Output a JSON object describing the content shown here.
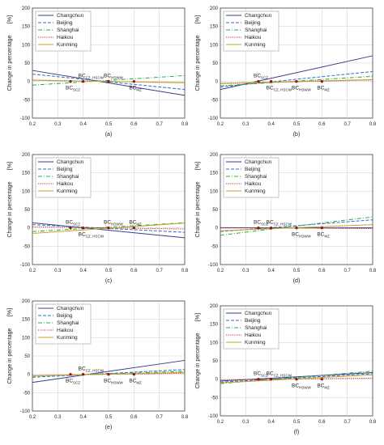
{
  "chart_data": [
    {
      "type": "line",
      "caption": "(a)",
      "ylabel": "Change in percentage",
      "yunit": "[%]",
      "xlim": [
        0.2,
        0.8
      ],
      "ylim": [
        -100,
        200
      ],
      "xticks": [
        0.2,
        0.3,
        0.4,
        0.5,
        0.6,
        0.7,
        0.8
      ],
      "yticks": [
        -100,
        -50,
        0,
        50,
        100,
        150,
        200
      ],
      "grid": true,
      "legend": "top-left",
      "series": [
        {
          "name": "Changchun",
          "x": [
            0.2,
            0.8
          ],
          "y": [
            30,
            -38
          ]
        },
        {
          "name": "Beijing",
          "x": [
            0.2,
            0.8
          ],
          "y": [
            20,
            -22
          ]
        },
        {
          "name": "Shanghai",
          "x": [
            0.2,
            0.8
          ],
          "y": [
            -10,
            16
          ]
        },
        {
          "name": "Haikou",
          "x": [
            0.2,
            0.8
          ],
          "y": [
            4,
            -4
          ]
        },
        {
          "name": "Kunming",
          "x": [
            0.2,
            0.8
          ],
          "y": [
            3,
            -3
          ]
        }
      ],
      "markers": [
        {
          "text": "BC",
          "sub": "SCZ",
          "x": 0.35,
          "y": 0,
          "label_pos": "below"
        },
        {
          "text": "BC",
          "sub": "CZ, HSCW",
          "x": 0.4,
          "y": 0,
          "label_pos": "above"
        },
        {
          "text": "BC",
          "sub": "HSWW",
          "x": 0.5,
          "y": 0,
          "label_pos": "above"
        },
        {
          "text": "BC",
          "sub": "MZ",
          "x": 0.6,
          "y": 0,
          "label_pos": "below"
        }
      ]
    },
    {
      "type": "line",
      "caption": "(b)",
      "ylabel": "Change in percentage",
      "yunit": "[%]",
      "xlim": [
        0.2,
        0.8
      ],
      "ylim": [
        -100,
        200
      ],
      "xticks": [
        0.2,
        0.3,
        0.4,
        0.5,
        0.6,
        0.7,
        0.8
      ],
      "yticks": [
        -100,
        -50,
        0,
        50,
        100,
        150,
        200
      ],
      "grid": true,
      "legend": "top-left",
      "series": [
        {
          "name": "Changchun",
          "x": [
            0.2,
            0.8
          ],
          "y": [
            -22,
            70
          ]
        },
        {
          "name": "Beijing",
          "x": [
            0.2,
            0.8
          ],
          "y": [
            -15,
            27
          ]
        },
        {
          "name": "Shanghai",
          "x": [
            0.2,
            0.8
          ],
          "y": [
            -12,
            14
          ]
        },
        {
          "name": "Haikou",
          "x": [
            0.2,
            0.8
          ],
          "y": [
            -6,
            4
          ]
        },
        {
          "name": "Kunming",
          "x": [
            0.2,
            0.8
          ],
          "y": [
            -5,
            5
          ]
        }
      ],
      "markers": [
        {
          "text": "BC",
          "sub": "SCZ",
          "x": 0.35,
          "y": 0,
          "label_pos": "above"
        },
        {
          "text": "BC",
          "sub": "CZ, HSCW",
          "x": 0.4,
          "y": 0,
          "label_pos": "below"
        },
        {
          "text": "BC",
          "sub": "HSWW",
          "x": 0.5,
          "y": 0,
          "label_pos": "below"
        },
        {
          "text": "BC",
          "sub": "MZ",
          "x": 0.6,
          "y": 0,
          "label_pos": "below"
        }
      ]
    },
    {
      "type": "line",
      "caption": "(c)",
      "ylabel": "Change in percentage",
      "yunit": "[%]",
      "xlim": [
        0.2,
        0.8
      ],
      "ylim": [
        -100,
        200
      ],
      "xticks": [
        0.2,
        0.3,
        0.4,
        0.5,
        0.6,
        0.7,
        0.8
      ],
      "yticks": [
        -100,
        -50,
        0,
        50,
        100,
        150,
        200
      ],
      "grid": true,
      "legend": "top-left",
      "series": [
        {
          "name": "Changchun",
          "x": [
            0.2,
            0.8
          ],
          "y": [
            14,
            -27
          ]
        },
        {
          "name": "Beijing",
          "x": [
            0.2,
            0.8
          ],
          "y": [
            9,
            -12
          ]
        },
        {
          "name": "Shanghai",
          "x": [
            0.2,
            0.8
          ],
          "y": [
            -10,
            14
          ]
        },
        {
          "name": "Haikou",
          "x": [
            0.2,
            0.8
          ],
          "y": [
            3,
            -3
          ]
        },
        {
          "name": "Kunming",
          "x": [
            0.2,
            0.8
          ],
          "y": [
            -15,
            13
          ]
        }
      ],
      "markers": [
        {
          "text": "BC",
          "sub": "SCZ",
          "x": 0.35,
          "y": 0,
          "label_pos": "above"
        },
        {
          "text": "BC",
          "sub": "CZ, HSCW",
          "x": 0.4,
          "y": 0,
          "label_pos": "below"
        },
        {
          "text": "BC",
          "sub": "HSWW",
          "x": 0.5,
          "y": 0,
          "label_pos": "above"
        },
        {
          "text": "BC",
          "sub": "MZ",
          "x": 0.6,
          "y": 0,
          "label_pos": "above"
        }
      ]
    },
    {
      "type": "line",
      "caption": "(d)",
      "ylabel": "Change in percentage",
      "yunit": "[%]",
      "xlim": [
        0.2,
        0.8
      ],
      "ylim": [
        -100,
        200
      ],
      "xticks": [
        0.2,
        0.3,
        0.4,
        0.5,
        0.6,
        0.7,
        0.8
      ],
      "yticks": [
        -100,
        -50,
        0,
        50,
        100,
        150,
        200
      ],
      "grid": true,
      "legend": "top-left",
      "series": [
        {
          "name": "Changchun",
          "x": [
            0.2,
            0.8
          ],
          "y": [
            0,
            0
          ]
        },
        {
          "name": "Beijing",
          "x": [
            0.2,
            0.8
          ],
          "y": [
            -10,
            22
          ]
        },
        {
          "name": "Shanghai",
          "x": [
            0.2,
            0.8
          ],
          "y": [
            -20,
            30
          ]
        },
        {
          "name": "Haikou",
          "x": [
            0.2,
            0.8
          ],
          "y": [
            1,
            -2
          ]
        },
        {
          "name": "Kunming",
          "x": [
            0.2,
            0.8
          ],
          "y": [
            -8,
            9
          ]
        }
      ],
      "markers": [
        {
          "text": "BC",
          "sub": "SCZ",
          "x": 0.35,
          "y": 0,
          "label_pos": "above"
        },
        {
          "text": "BC",
          "sub": "CZ, HSCW",
          "x": 0.4,
          "y": 0,
          "label_pos": "above"
        },
        {
          "text": "BC",
          "sub": "HSWW",
          "x": 0.5,
          "y": 0,
          "label_pos": "below"
        },
        {
          "text": "BC",
          "sub": "MZ",
          "x": 0.6,
          "y": 0,
          "label_pos": "below"
        }
      ]
    },
    {
      "type": "line",
      "caption": "(e)",
      "ylabel": "Change in percentage",
      "yunit": "[%]",
      "xlim": [
        0.2,
        0.8
      ],
      "ylim": [
        -100,
        200
      ],
      "xticks": [
        0.2,
        0.3,
        0.4,
        0.5,
        0.6,
        0.7,
        0.8
      ],
      "yticks": [
        -100,
        -50,
        0,
        50,
        100,
        150,
        200
      ],
      "grid": true,
      "legend": "top-left",
      "series": [
        {
          "name": "Changchun",
          "x": [
            0.2,
            0.8
          ],
          "y": [
            -22,
            38
          ]
        },
        {
          "name": "Beijing",
          "x": [
            0.2,
            0.8
          ],
          "y": [
            -8,
            13
          ]
        },
        {
          "name": "Shanghai",
          "x": [
            0.2,
            0.8
          ],
          "y": [
            -5,
            8
          ]
        },
        {
          "name": "Haikou",
          "x": [
            0.2,
            0.8
          ],
          "y": [
            -3,
            3
          ]
        },
        {
          "name": "Kunming",
          "x": [
            0.2,
            0.8
          ],
          "y": [
            -4,
            5
          ]
        }
      ],
      "markers": [
        {
          "text": "BC",
          "sub": "SCZ",
          "x": 0.35,
          "y": 0,
          "label_pos": "below"
        },
        {
          "text": "BC",
          "sub": "CZ, HSCW",
          "x": 0.4,
          "y": 0,
          "label_pos": "above"
        },
        {
          "text": "BC",
          "sub": "HSWW",
          "x": 0.5,
          "y": 0,
          "label_pos": "below"
        },
        {
          "text": "BC",
          "sub": "MZ",
          "x": 0.6,
          "y": 0,
          "label_pos": "below"
        }
      ]
    },
    {
      "type": "line",
      "caption": "(f)",
      "ylabel": "Change in percentage",
      "yunit": "[%]",
      "xlim": [
        0.2,
        0.8
      ],
      "ylim": [
        -100,
        200
      ],
      "xticks": [
        0.2,
        0.3,
        0.4,
        0.5,
        0.6,
        0.7,
        0.8
      ],
      "yticks": [
        -100,
        -50,
        0,
        50,
        100,
        150,
        200
      ],
      "grid": true,
      "legend": "top-left",
      "series": [
        {
          "name": "Changchun",
          "x": [
            0.2,
            0.8
          ],
          "y": [
            -5,
            18
          ]
        },
        {
          "name": "Beijing",
          "x": [
            0.2,
            0.8
          ],
          "y": [
            -8,
            15
          ]
        },
        {
          "name": "Shanghai",
          "x": [
            0.2,
            0.8
          ],
          "y": [
            -12,
            22
          ]
        },
        {
          "name": "Haikou",
          "x": [
            0.2,
            0.8
          ],
          "y": [
            -2,
            3
          ]
        },
        {
          "name": "Kunming",
          "x": [
            0.2,
            0.8
          ],
          "y": [
            -10,
            12
          ]
        }
      ],
      "markers": [
        {
          "text": "BC",
          "sub": "SCZ",
          "x": 0.35,
          "y": 0,
          "label_pos": "above"
        },
        {
          "text": "BC",
          "sub": "CZ, HSCW",
          "x": 0.4,
          "y": 0,
          "label_pos": "above"
        },
        {
          "text": "BC",
          "sub": "HSWW",
          "x": 0.5,
          "y": 0,
          "label_pos": "below"
        },
        {
          "text": "BC",
          "sub": "MZ",
          "x": 0.6,
          "y": 0,
          "label_pos": "below"
        }
      ]
    }
  ],
  "series_styles": [
    {
      "name": "Changchun",
      "color": "#3b3b8f",
      "dash": "solid"
    },
    {
      "name": "Beijing",
      "color": "#2f6fc0",
      "dash": "dashed"
    },
    {
      "name": "Shanghai",
      "color": "#2aa84a",
      "dash": "dashdot"
    },
    {
      "name": "Haikou",
      "color": "#d02020",
      "dash": "dotted"
    },
    {
      "name": "Kunming",
      "color": "#c9a227",
      "dash": "solid"
    }
  ],
  "marker_color": "#8a1a1a"
}
